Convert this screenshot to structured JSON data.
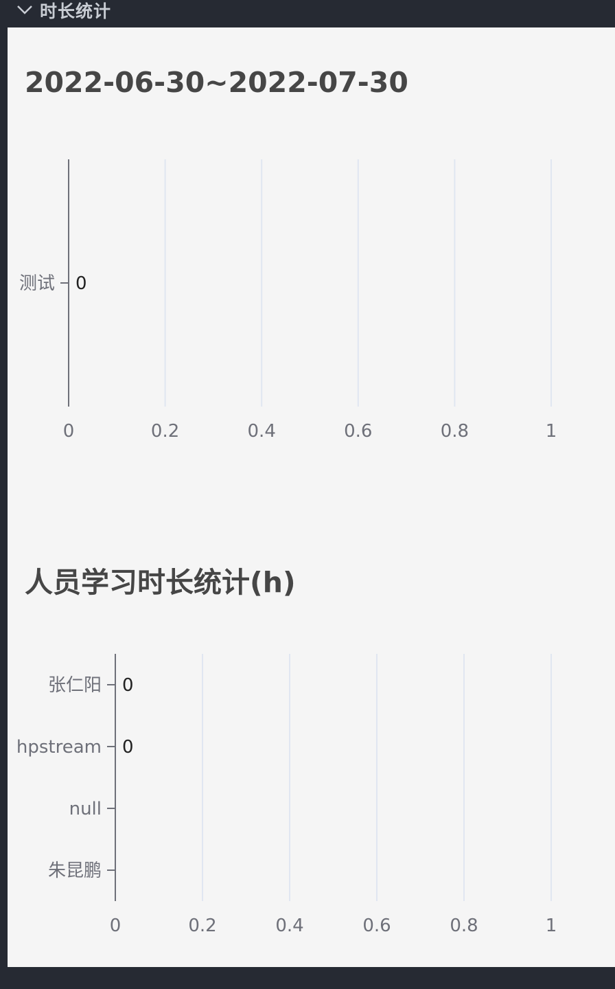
{
  "header": {
    "title": "时长统计",
    "toggle_icon": "chevron-down-icon"
  },
  "colors": {
    "axis": "#6e7079",
    "grid": "#e0e6f1",
    "panel_bg": "#f5f5f5",
    "header_bg": "#262a33"
  },
  "chart_data": [
    {
      "type": "bar",
      "orientation": "horizontal",
      "title": "2022-06-30~2022-07-30",
      "categories": [
        "测试"
      ],
      "values": [
        0
      ],
      "xlim": [
        0,
        1
      ],
      "xticks": [
        "0",
        "0.2",
        "0.4",
        "0.6",
        "0.8",
        "1"
      ],
      "data_labels": [
        "0"
      ],
      "grid": true
    },
    {
      "type": "bar",
      "orientation": "horizontal",
      "title": "人员学习时长统计(h)",
      "categories": [
        "朱昆鹏",
        "null",
        "hpstream",
        "张仁阳"
      ],
      "values": [
        null,
        null,
        0,
        0
      ],
      "xlim": [
        0,
        1
      ],
      "xticks": [
        "0",
        "0.2",
        "0.4",
        "0.6",
        "0.8",
        "1"
      ],
      "data_labels": [
        "",
        "",
        "0",
        "0"
      ],
      "grid": true
    }
  ]
}
